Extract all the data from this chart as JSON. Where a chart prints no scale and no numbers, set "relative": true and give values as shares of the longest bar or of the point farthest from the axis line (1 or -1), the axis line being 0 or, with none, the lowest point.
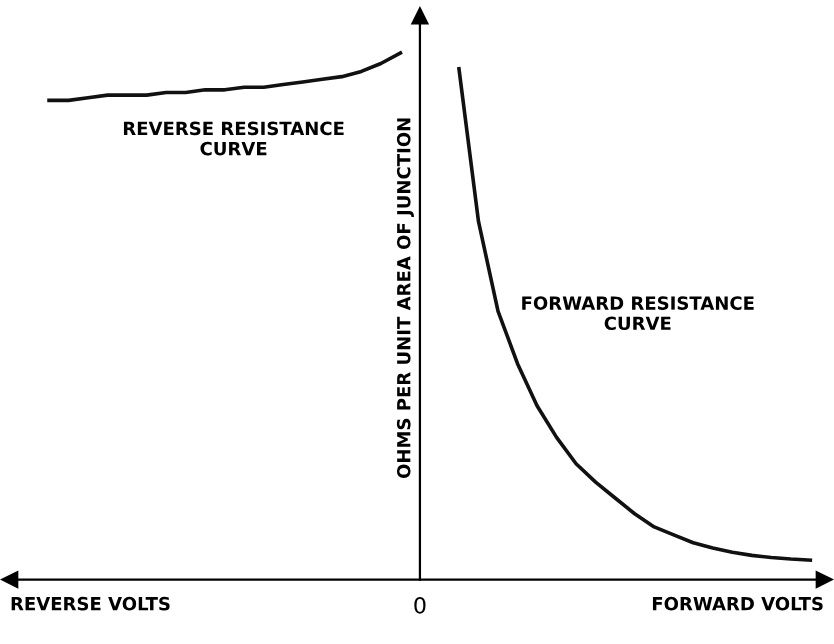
{
  "chart_data": {
    "type": "line",
    "relative": true,
    "ylabel": "OHMS PER UNIT AREA OF JUNCTION",
    "xlabel": "FORWARD VOLTS",
    "marker": "none",
    "line_style": "solid",
    "categories": [
      null,
      null,
      null,
      null,
      null,
      null,
      null,
      null,
      null,
      null,
      null,
      null,
      null,
      null,
      null,
      null,
      null,
      null,
      null,
      null,
      null,
      null,
      null,
      null,
      null,
      null,
      null,
      null,
      null,
      null,
      null,
      null,
      null,
      null,
      null,
      null,
      null,
      null,
      null,
      null,
      null
    ],
    "series": [
      {
        "color": "#111111",
        "values": [
          null,
          0.91,
          0.91,
          0.915,
          0.92,
          0.92,
          0.92,
          0.925,
          0.925,
          0.93,
          0.93,
          0.935,
          0.935,
          0.94,
          0.945,
          0.95,
          0.955,
          0.965,
          0.98,
          1.0,
          null,
          null,
          null,
          null,
          null,
          null,
          null,
          null,
          null,
          null,
          null,
          null,
          null,
          null,
          null,
          null,
          null,
          null,
          null,
          null,
          null
        ]
      },
      {
        "color": "#111111",
        "values": [
          null,
          null,
          null,
          null,
          null,
          null,
          null,
          null,
          null,
          null,
          null,
          null,
          null,
          null,
          null,
          null,
          null,
          null,
          null,
          null,
          null,
          null,
          0.97,
          0.68,
          0.51,
          0.41,
          0.33,
          0.27,
          0.22,
          0.185,
          0.155,
          0.125,
          0.1,
          0.085,
          0.07,
          0.06,
          0.052,
          0.046,
          0.042,
          0.039,
          0.037
        ]
      }
    ],
    "annotations": [
      "REVERSE RESISTANCE\nCURVE",
      "FORWARD RESISTANCE\nCURVE",
      "0",
      "REVERSE VOLTS"
    ]
  }
}
